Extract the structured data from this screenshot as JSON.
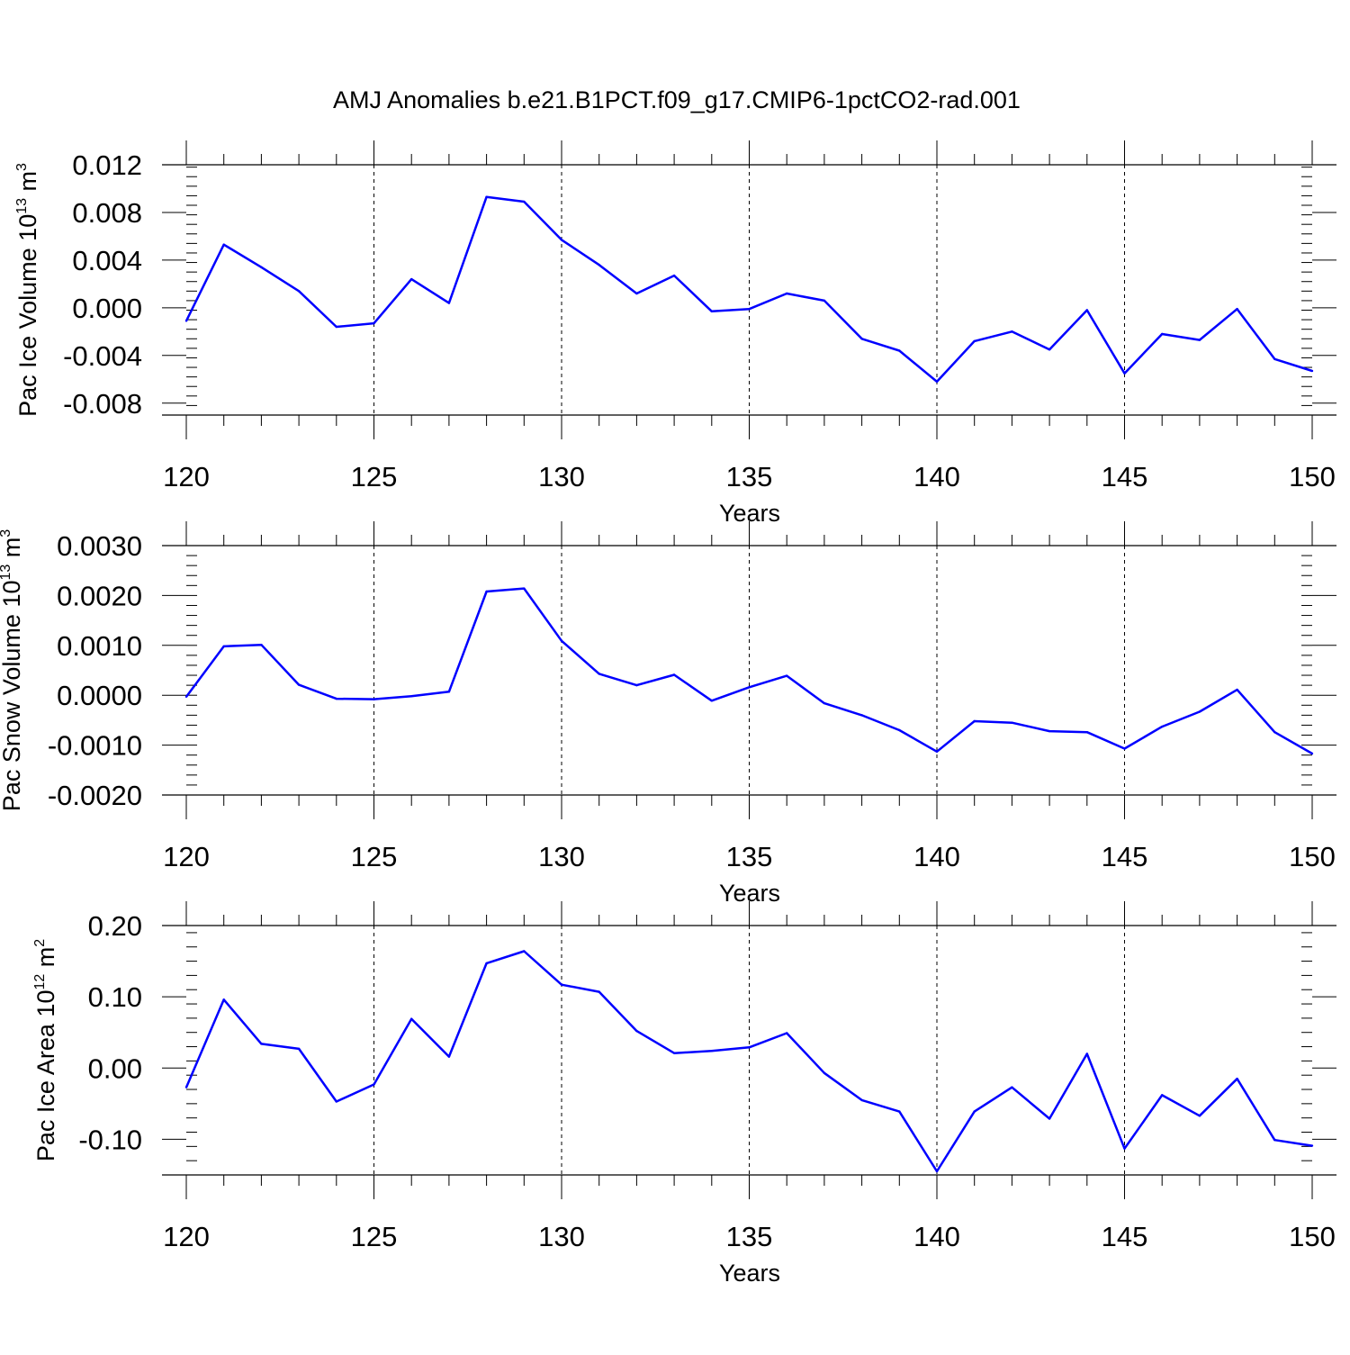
{
  "title": "AMJ Anomalies b.e21.B1PCT.f09_g17.CMIP6-1pctCO2-rad.001",
  "line_color": "#0000ff",
  "chart_data": [
    {
      "type": "line",
      "ylabel_main": "Pac Ice Volume 10",
      "ylabel_exp": "13",
      "ylabel_unit": "m",
      "ylabel_unit_exp": "3",
      "xlabel": "Years",
      "xlim": [
        120,
        150
      ],
      "ylim": [
        -0.009,
        0.012
      ],
      "xticks": [
        120,
        125,
        130,
        135,
        140,
        145,
        150
      ],
      "xtick_labels": [
        "120",
        "125",
        "130",
        "135",
        "140",
        "145",
        "150"
      ],
      "yticks": [
        -0.008,
        -0.004,
        0.0,
        0.004,
        0.008,
        0.012
      ],
      "ytick_labels": [
        "-0.008",
        "-0.004",
        "0.000",
        "0.004",
        "0.008",
        "0.012"
      ],
      "grid": "vertical dashed at major x ticks",
      "x": [
        120,
        121,
        122,
        123,
        124,
        125,
        126,
        127,
        128,
        129,
        130,
        131,
        132,
        133,
        134,
        135,
        136,
        137,
        138,
        139,
        140,
        141,
        142,
        143,
        144,
        145,
        146,
        147,
        148,
        149,
        150
      ],
      "y": [
        -0.0011,
        0.0053,
        0.0034,
        0.0014,
        -0.0016,
        -0.0013,
        0.0024,
        0.0004,
        0.0093,
        0.0089,
        0.0057,
        0.0036,
        0.0012,
        0.0027,
        -0.0003,
        -0.0001,
        0.0012,
        0.0006,
        -0.0026,
        -0.0036,
        -0.0062,
        -0.0028,
        -0.002,
        -0.0035,
        -0.0002,
        -0.0055,
        -0.0022,
        -0.0027,
        -0.0001,
        -0.0043,
        -0.0053
      ]
    },
    {
      "type": "line",
      "ylabel_main": "Pac Snow Volume 10",
      "ylabel_exp": "13",
      "ylabel_unit": "m",
      "ylabel_unit_exp": "3",
      "xlabel": "Years",
      "xlim": [
        120,
        150
      ],
      "ylim": [
        -0.002,
        0.003
      ],
      "xticks": [
        120,
        125,
        130,
        135,
        140,
        145,
        150
      ],
      "xtick_labels": [
        "120",
        "125",
        "130",
        "135",
        "140",
        "145",
        "150"
      ],
      "yticks": [
        -0.002,
        -0.001,
        0.0,
        0.001,
        0.002,
        0.003
      ],
      "ytick_labels": [
        "-0.0020",
        "-0.0010",
        "0.0000",
        "0.0010",
        "0.0020",
        "0.0030"
      ],
      "grid": "vertical dashed at major x ticks",
      "x": [
        120,
        121,
        122,
        123,
        124,
        125,
        126,
        127,
        128,
        129,
        130,
        131,
        132,
        133,
        134,
        135,
        136,
        137,
        138,
        139,
        140,
        141,
        142,
        143,
        144,
        145,
        146,
        147,
        148,
        149,
        150
      ],
      "y": [
        -3e-05,
        0.00098,
        0.00101,
        0.00021,
        -7e-05,
        -8e-05,
        -2e-05,
        7e-05,
        0.00208,
        0.00214,
        0.00109,
        0.00043,
        0.0002,
        0.00041,
        -0.00011,
        0.00016,
        0.00039,
        -0.00016,
        -0.0004,
        -0.0007,
        -0.00113,
        -0.00052,
        -0.00055,
        -0.00072,
        -0.00074,
        -0.00107,
        -0.00063,
        -0.00033,
        0.00011,
        -0.00074,
        -0.00117
      ]
    },
    {
      "type": "line",
      "ylabel_main": "Pac Ice Area 10",
      "ylabel_exp": "12",
      "ylabel_unit": "m",
      "ylabel_unit_exp": "2",
      "xlabel": "Years",
      "xlim": [
        120,
        150
      ],
      "ylim": [
        -0.15,
        0.2
      ],
      "xticks": [
        120,
        125,
        130,
        135,
        140,
        145,
        150
      ],
      "xtick_labels": [
        "120",
        "125",
        "130",
        "135",
        "140",
        "145",
        "150"
      ],
      "yticks": [
        -0.1,
        0.0,
        0.1,
        0.2
      ],
      "ytick_labels": [
        "-0.10",
        "0.00",
        "0.10",
        "0.20"
      ],
      "grid": "vertical dashed at major x ticks",
      "x": [
        120,
        121,
        122,
        123,
        124,
        125,
        126,
        127,
        128,
        129,
        130,
        131,
        132,
        133,
        134,
        135,
        136,
        137,
        138,
        139,
        140,
        141,
        142,
        143,
        144,
        145,
        146,
        147,
        148,
        149,
        150
      ],
      "y": [
        -0.027,
        0.096,
        0.034,
        0.027,
        -0.047,
        -0.023,
        0.069,
        0.016,
        0.147,
        0.164,
        0.117,
        0.107,
        0.052,
        0.021,
        0.024,
        0.029,
        0.049,
        -0.007,
        -0.045,
        -0.061,
        -0.145,
        -0.061,
        -0.027,
        -0.071,
        0.02,
        -0.113,
        -0.038,
        -0.067,
        -0.015,
        -0.101,
        -0.109
      ]
    }
  ]
}
